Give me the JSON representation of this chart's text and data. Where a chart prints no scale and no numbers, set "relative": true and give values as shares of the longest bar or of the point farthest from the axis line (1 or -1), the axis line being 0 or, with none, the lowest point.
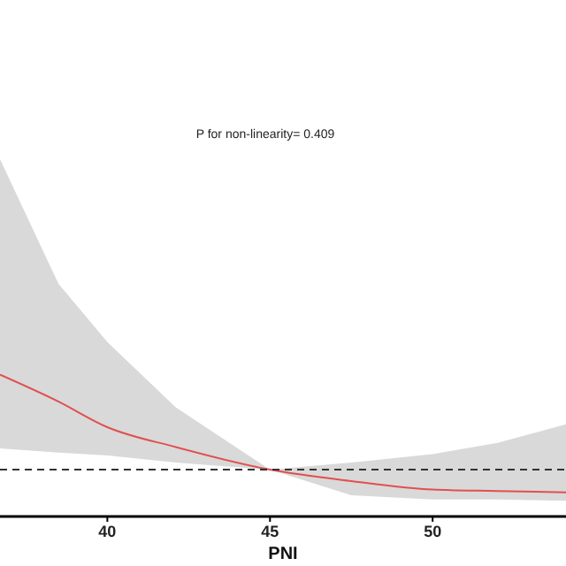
{
  "chart_data": {
    "type": "line",
    "xlabel": "PNI",
    "annotations": [
      "P for non-linearity= 0.409"
    ],
    "relative": true,
    "x": [
      36.7,
      38.5,
      40,
      42.1,
      45,
      47.5,
      50,
      52,
      54.1
    ],
    "series": [
      {
        "color": "#e05050",
        "values": [
          1,
          0.81,
          0.63,
          0.49,
          0.33,
          0.25,
          0.19,
          0.18,
          0.17
        ],
        "lower": [
          0.48,
          0.45,
          0.43,
          0.38,
          0.33,
          0.15,
          0.12,
          0.12,
          0.11
        ],
        "upper": [
          2.52,
          1.64,
          1.23,
          0.77,
          0.33,
          0.38,
          0.44,
          0.52,
          0.65
        ]
      }
    ],
    "xlim": [
      36.7,
      54.1
    ],
    "xticks": [
      40,
      45,
      50
    ],
    "ref_lines": [
      {
        "axis": "y",
        "value": 0.33,
        "color": "#333333",
        "line_style": "dashed"
      }
    ],
    "grid": false,
    "marker": "none",
    "line_style": "solid"
  }
}
